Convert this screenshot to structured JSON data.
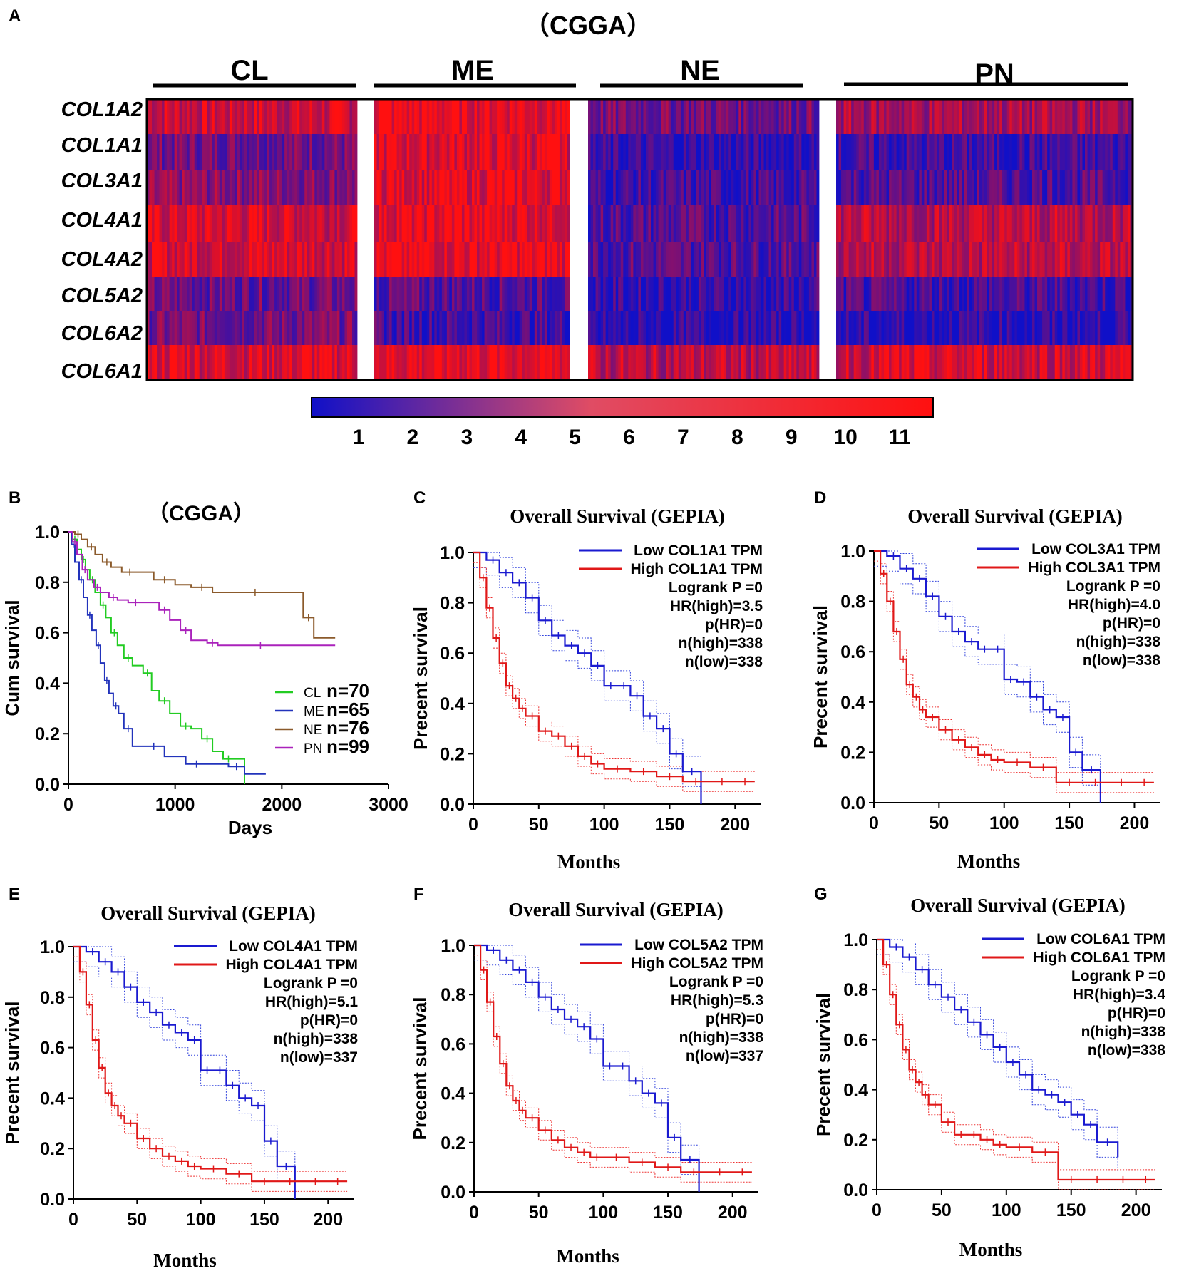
{
  "heatmap": {
    "panel": "A",
    "title": "（CGGA）",
    "subtypes": [
      "CL",
      "ME",
      "NE",
      "PN"
    ],
    "genes": [
      "COL1A2",
      "COL1A1",
      "COL3A1",
      "COL4A1",
      "COL4A2",
      "COL5A2",
      "COL6A2",
      "COL6A1"
    ],
    "colorbar_ticks": [
      "1",
      "2",
      "3",
      "4",
      "5",
      "6",
      "7",
      "8",
      "9",
      "10",
      "11"
    ],
    "colors": {
      "low": "#1010c8",
      "high": "#ff1010"
    }
  },
  "chart_data": [
    {
      "id": "B",
      "type": "line",
      "panel": "B",
      "title": "（CGGA）",
      "xlabel": "Days",
      "ylabel": "Cum survival",
      "xlim": [
        0,
        3000
      ],
      "ylim": [
        0,
        1.0
      ],
      "xticks": [
        "0",
        "1000",
        "2000",
        "3000"
      ],
      "yticks": [
        "0.0",
        "0.2",
        "0.4",
        "0.6",
        "0.8",
        "1.0"
      ],
      "series": [
        {
          "group": "CL",
          "n": "n=70",
          "color": "#22cc22",
          "x": [
            0,
            40,
            80,
            120,
            160,
            200,
            250,
            300,
            350,
            400,
            460,
            520,
            600,
            700,
            780,
            850,
            950,
            1050,
            1150,
            1250,
            1350,
            1450,
            1550,
            1650
          ],
          "y": [
            1.0,
            0.97,
            0.93,
            0.89,
            0.85,
            0.81,
            0.76,
            0.71,
            0.66,
            0.6,
            0.55,
            0.5,
            0.47,
            0.44,
            0.37,
            0.33,
            0.28,
            0.23,
            0.22,
            0.18,
            0.13,
            0.1,
            0.1,
            0.0
          ]
        },
        {
          "group": "ME",
          "n": "n=65",
          "color": "#2233bb",
          "x": [
            0,
            30,
            60,
            100,
            140,
            180,
            220,
            260,
            300,
            340,
            380,
            420,
            470,
            520,
            600,
            700,
            900,
            1100,
            1300,
            1500,
            1650,
            1850
          ],
          "y": [
            1.0,
            0.95,
            0.88,
            0.81,
            0.74,
            0.67,
            0.61,
            0.55,
            0.48,
            0.41,
            0.36,
            0.31,
            0.28,
            0.22,
            0.15,
            0.15,
            0.11,
            0.08,
            0.08,
            0.07,
            0.04,
            0.04
          ]
        },
        {
          "group": "NE",
          "n": "n=76",
          "color": "#8b5a2b",
          "x": [
            0,
            60,
            120,
            180,
            250,
            320,
            400,
            500,
            650,
            800,
            1000,
            1150,
            1350,
            1600,
            1900,
            2200,
            2300,
            2500
          ],
          "y": [
            1.0,
            0.99,
            0.97,
            0.94,
            0.91,
            0.88,
            0.86,
            0.84,
            0.84,
            0.81,
            0.79,
            0.78,
            0.76,
            0.76,
            0.76,
            0.66,
            0.58,
            0.58
          ]
        },
        {
          "group": "PN",
          "n": "n=99",
          "color": "#aa22bb",
          "x": [
            0,
            40,
            80,
            130,
            180,
            240,
            300,
            380,
            460,
            560,
            700,
            850,
            950,
            1050,
            1150,
            1300,
            1400,
            1600,
            2000,
            2500
          ],
          "y": [
            1.0,
            0.96,
            0.91,
            0.85,
            0.81,
            0.78,
            0.76,
            0.74,
            0.73,
            0.72,
            0.72,
            0.69,
            0.65,
            0.61,
            0.57,
            0.56,
            0.55,
            0.55,
            0.55,
            0.55
          ]
        }
      ]
    },
    {
      "id": "C",
      "type": "line",
      "panel": "C",
      "title": "Overall Survival (GEPIA)",
      "xlabel": "Months",
      "ylabel": "Precent survival",
      "xlim": [
        0,
        220
      ],
      "ylim": [
        0,
        1.0
      ],
      "xticks": [
        "0",
        "50",
        "100",
        "150",
        "200"
      ],
      "yticks": [
        "0.0",
        "0.2",
        "0.4",
        "0.6",
        "0.8",
        "1.0"
      ],
      "legend": [
        "Low COL1A1 TPM",
        "High COL1A1 TPM"
      ],
      "stats": [
        "Logrank P =0",
        "HR(high)=3.5",
        "p(HR)=0",
        "n(high)=338",
        "n(low)=338"
      ],
      "low_curve": {
        "x": [
          0,
          10,
          20,
          30,
          40,
          50,
          60,
          70,
          80,
          90,
          100,
          110,
          120,
          130,
          140,
          150,
          160,
          174
        ],
        "y": [
          1.0,
          0.97,
          0.92,
          0.88,
          0.82,
          0.73,
          0.67,
          0.63,
          0.6,
          0.55,
          0.47,
          0.47,
          0.43,
          0.35,
          0.3,
          0.2,
          0.13,
          0.0
        ]
      },
      "high_curve": {
        "x": [
          0,
          5,
          10,
          15,
          20,
          25,
          30,
          35,
          40,
          50,
          60,
          70,
          80,
          90,
          100,
          120,
          140,
          160,
          180,
          200,
          215
        ],
        "y": [
          1.0,
          0.9,
          0.78,
          0.66,
          0.56,
          0.47,
          0.42,
          0.38,
          0.35,
          0.29,
          0.27,
          0.23,
          0.19,
          0.16,
          0.14,
          0.13,
          0.11,
          0.09,
          0.09,
          0.09,
          0.09
        ]
      }
    },
    {
      "id": "D",
      "type": "line",
      "panel": "D",
      "title": "Overall Survival (GEPIA)",
      "xlabel": "Months",
      "ylabel": "Precent survival",
      "xlim": [
        0,
        220
      ],
      "ylim": [
        0,
        1.0
      ],
      "xticks": [
        "0",
        "50",
        "100",
        "150",
        "200"
      ],
      "yticks": [
        "0.0",
        "0.2",
        "0.4",
        "0.6",
        "0.8",
        "1.0"
      ],
      "legend": [
        "Low COL3A1 TPM",
        "High COL3A1 TPM"
      ],
      "stats": [
        "Logrank P =0",
        "HR(high)=4.0",
        "p(HR)=0",
        "n(high)=338",
        "n(low)=338"
      ],
      "low_curve": {
        "x": [
          0,
          10,
          20,
          30,
          40,
          50,
          60,
          70,
          80,
          90,
          100,
          110,
          120,
          130,
          140,
          150,
          160,
          174
        ],
        "y": [
          1.0,
          0.98,
          0.93,
          0.89,
          0.82,
          0.74,
          0.68,
          0.64,
          0.61,
          0.61,
          0.49,
          0.48,
          0.42,
          0.37,
          0.34,
          0.2,
          0.13,
          0.0
        ]
      },
      "high_curve": {
        "x": [
          0,
          5,
          10,
          15,
          20,
          25,
          30,
          35,
          40,
          50,
          60,
          70,
          80,
          90,
          100,
          120,
          140,
          160,
          180,
          200,
          215
        ],
        "y": [
          1.0,
          0.91,
          0.8,
          0.68,
          0.57,
          0.47,
          0.42,
          0.37,
          0.34,
          0.29,
          0.25,
          0.22,
          0.19,
          0.17,
          0.16,
          0.14,
          0.08,
          0.08,
          0.08,
          0.08,
          0.08
        ]
      }
    },
    {
      "id": "E",
      "type": "line",
      "panel": "E",
      "title": "Overall Survival (GEPIA)",
      "xlabel": "Months",
      "ylabel": "Precent survival",
      "xlim": [
        0,
        220
      ],
      "ylim": [
        0,
        1.0
      ],
      "xticks": [
        "0",
        "50",
        "100",
        "150",
        "200"
      ],
      "yticks": [
        "0.0",
        "0.2",
        "0.4",
        "0.6",
        "0.8",
        "1.0"
      ],
      "legend": [
        "Low COL4A1 TPM",
        "High COL4A1 TPM"
      ],
      "stats": [
        "Logrank P =0",
        "HR(high)=5.1",
        "p(HR)=0",
        "n(high)=338",
        "n(low)=337"
      ],
      "low_curve": {
        "x": [
          0,
          10,
          20,
          30,
          40,
          50,
          60,
          70,
          80,
          90,
          100,
          110,
          120,
          130,
          140,
          150,
          160,
          174
        ],
        "y": [
          1.0,
          0.98,
          0.94,
          0.9,
          0.84,
          0.78,
          0.74,
          0.69,
          0.66,
          0.63,
          0.51,
          0.51,
          0.45,
          0.4,
          0.37,
          0.23,
          0.13,
          0.0
        ]
      },
      "high_curve": {
        "x": [
          0,
          5,
          10,
          15,
          20,
          25,
          30,
          35,
          40,
          50,
          60,
          70,
          80,
          90,
          100,
          120,
          140,
          160,
          180,
          200,
          215
        ],
        "y": [
          1.0,
          0.9,
          0.77,
          0.63,
          0.52,
          0.42,
          0.37,
          0.33,
          0.3,
          0.24,
          0.2,
          0.17,
          0.15,
          0.13,
          0.12,
          0.1,
          0.07,
          0.07,
          0.07,
          0.07,
          0.07
        ]
      }
    },
    {
      "id": "F",
      "type": "line",
      "panel": "F",
      "title": "Overall Survival (GEPIA)",
      "xlabel": "Months",
      "ylabel": "Precent survival",
      "xlim": [
        0,
        220
      ],
      "ylim": [
        0,
        1.0
      ],
      "xticks": [
        "0",
        "50",
        "100",
        "150",
        "200"
      ],
      "yticks": [
        "0.0",
        "0.2",
        "0.4",
        "0.6",
        "0.8",
        "1.0"
      ],
      "legend": [
        "Low COL5A2 TPM",
        "High COL5A2 TPM"
      ],
      "stats": [
        "Logrank P =0",
        "HR(high)=5.3",
        "p(HR)=0",
        "n(high)=338",
        "n(low)=337"
      ],
      "low_curve": {
        "x": [
          0,
          10,
          20,
          30,
          40,
          50,
          60,
          70,
          80,
          90,
          100,
          110,
          120,
          130,
          140,
          150,
          160,
          174
        ],
        "y": [
          1.0,
          0.98,
          0.94,
          0.9,
          0.85,
          0.79,
          0.74,
          0.7,
          0.67,
          0.62,
          0.51,
          0.51,
          0.45,
          0.4,
          0.36,
          0.22,
          0.13,
          0.0
        ]
      },
      "high_curve": {
        "x": [
          0,
          5,
          10,
          15,
          20,
          25,
          30,
          35,
          40,
          50,
          60,
          70,
          80,
          90,
          100,
          120,
          140,
          160,
          180,
          200,
          215
        ],
        "y": [
          1.0,
          0.9,
          0.77,
          0.63,
          0.52,
          0.43,
          0.37,
          0.33,
          0.3,
          0.25,
          0.21,
          0.18,
          0.16,
          0.14,
          0.14,
          0.12,
          0.1,
          0.08,
          0.08,
          0.08,
          0.08
        ]
      }
    },
    {
      "id": "G",
      "type": "line",
      "panel": "G",
      "title": "Overall Survival (GEPIA)",
      "xlabel": "Months",
      "ylabel": "Precent survival",
      "xlim": [
        0,
        220
      ],
      "ylim": [
        0,
        1.0
      ],
      "xticks": [
        "0",
        "50",
        "100",
        "150",
        "200"
      ],
      "yticks": [
        "0.0",
        "0.2",
        "0.4",
        "0.6",
        "0.8",
        "1.0"
      ],
      "legend": [
        "Low COL6A1 TPM",
        "High COL6A1 TPM"
      ],
      "stats": [
        "Logrank P =0",
        "HR(high)=3.4",
        "p(HR)=0",
        "n(high)=338",
        "n(low)=338"
      ],
      "low_curve": {
        "x": [
          0,
          10,
          20,
          30,
          40,
          50,
          60,
          70,
          80,
          90,
          100,
          110,
          120,
          130,
          140,
          150,
          160,
          170,
          186
        ],
        "y": [
          1.0,
          0.97,
          0.93,
          0.88,
          0.82,
          0.77,
          0.72,
          0.67,
          0.62,
          0.57,
          0.51,
          0.46,
          0.4,
          0.38,
          0.35,
          0.3,
          0.26,
          0.19,
          0.13
        ]
      },
      "high_curve": {
        "x": [
          0,
          5,
          10,
          15,
          20,
          25,
          30,
          35,
          40,
          50,
          60,
          70,
          80,
          90,
          100,
          120,
          140,
          160,
          180,
          200,
          215
        ],
        "y": [
          1.0,
          0.9,
          0.78,
          0.66,
          0.56,
          0.48,
          0.43,
          0.38,
          0.34,
          0.27,
          0.22,
          0.22,
          0.2,
          0.18,
          0.17,
          0.15,
          0.04,
          0.04,
          0.04,
          0.04,
          0.04
        ]
      }
    }
  ]
}
